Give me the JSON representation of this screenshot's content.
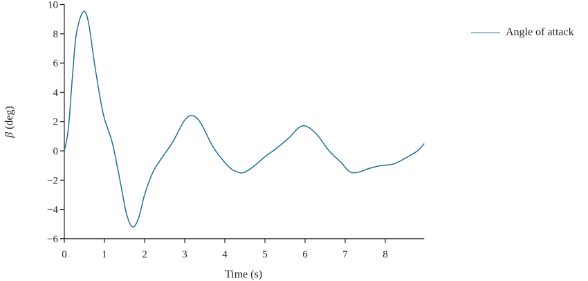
{
  "chart_data": {
    "type": "line",
    "title": "",
    "xlabel": "Time (s)",
    "ylabel": "β (deg)",
    "xlim": [
      0,
      8.97
    ],
    "ylim": [
      -6,
      10
    ],
    "xticks": [
      0,
      1,
      2,
      3,
      4,
      5,
      6,
      7,
      8
    ],
    "yticks": [
      -6,
      -4,
      -2,
      0,
      2,
      4,
      6,
      8,
      10
    ],
    "grid": false,
    "legend_position": "upper right, outside plot",
    "series": [
      {
        "name": "Angle of attack",
        "color": "#1f6f96",
        "x": [
          0.0,
          0.1,
          0.2,
          0.3,
          0.47,
          0.6,
          0.75,
          0.9,
          1.0,
          1.2,
          1.4,
          1.55,
          1.7,
          1.85,
          2.0,
          2.2,
          2.4,
          2.7,
          3.0,
          3.2,
          3.4,
          3.7,
          4.0,
          4.2,
          4.44,
          4.7,
          5.0,
          5.3,
          5.6,
          5.85,
          6.04,
          6.3,
          6.6,
          6.9,
          7.1,
          7.3,
          7.6,
          7.9,
          8.2,
          8.5,
          8.8,
          8.97
        ],
        "values": [
          0.0,
          1.5,
          5.0,
          8.0,
          9.5,
          8.8,
          6.0,
          3.5,
          2.2,
          0.5,
          -2.2,
          -4.3,
          -5.2,
          -4.6,
          -3.0,
          -1.5,
          -0.6,
          0.6,
          2.1,
          2.4,
          1.9,
          0.3,
          -0.8,
          -1.3,
          -1.5,
          -1.1,
          -0.4,
          0.2,
          0.9,
          1.6,
          1.67,
          1.1,
          0.0,
          -0.8,
          -1.4,
          -1.48,
          -1.2,
          -1.0,
          -0.9,
          -0.5,
          0.0,
          0.5
        ]
      }
    ]
  },
  "legend": {
    "label": "Angle of attack"
  }
}
